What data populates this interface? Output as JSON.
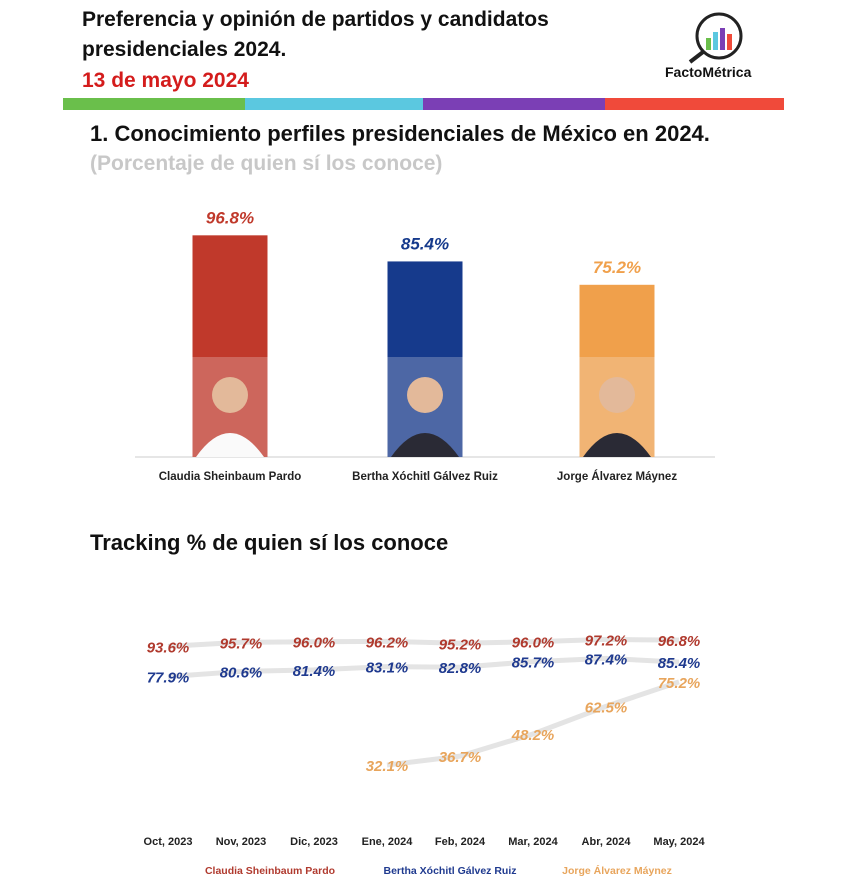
{
  "header": {
    "title_lines": [
      "Preferencia y opinión de partidos y candidatos",
      "presidenciales 2024."
    ],
    "date": "13 de mayo 2024",
    "logo": "FactoMétrica"
  },
  "chart_data": [
    {
      "type": "bar",
      "title": "1. Conocimiento perfiles presidenciales de México en 2024.",
      "subtitle": "(Porcentaje de quien sí los conoce)",
      "categories": [
        "Claudia Sheinbaum Pardo",
        "Bertha Xóchitl Gálvez Ruiz",
        "Jorge Álvarez Máynez"
      ],
      "values": [
        96.8,
        85.4,
        75.2
      ],
      "value_labels": [
        "96.8%",
        "85.4%",
        "75.2%"
      ],
      "colors": [
        "#c0392b",
        "#163a8c",
        "#f0a04b"
      ]
    },
    {
      "type": "line",
      "title": "Tracking % de quien sí los conoce",
      "categories": [
        "Oct, 2023",
        "Nov, 2023",
        "Dic, 2023",
        "Ene, 2024",
        "Feb, 2024",
        "Mar, 2024",
        "Abr, 2024",
        "May, 2024"
      ],
      "series": [
        {
          "name": "Claudia Sheinbaum Pardo",
          "color": "#b03a2e",
          "values": [
            93.6,
            95.7,
            96.0,
            96.2,
            95.2,
            96.0,
            97.2,
            96.8
          ],
          "value_labels": [
            "93.6%",
            "95.7%",
            "96.0%",
            "96.2%",
            "95.2%",
            "96.0%",
            "97.2%",
            "96.8%"
          ]
        },
        {
          "name": "Bertha Xóchitl Gálvez Ruiz",
          "color": "#1f3a8f",
          "values": [
            77.9,
            80.6,
            81.4,
            83.1,
            82.8,
            85.7,
            87.4,
            85.4
          ],
          "value_labels": [
            "77.9%",
            "80.6%",
            "81.4%",
            "83.1%",
            "82.8%",
            "85.7%",
            "87.4%",
            "85.4%"
          ]
        },
        {
          "name": "Jorge Álvarez Máynez",
          "color": "#e8a55c",
          "values": [
            null,
            null,
            null,
            32.1,
            36.7,
            48.2,
            62.5,
            75.2
          ],
          "value_labels": [
            null,
            null,
            null,
            "32.1%",
            "36.7%",
            "48.2%",
            "62.5%",
            "75.2%"
          ]
        }
      ]
    }
  ]
}
